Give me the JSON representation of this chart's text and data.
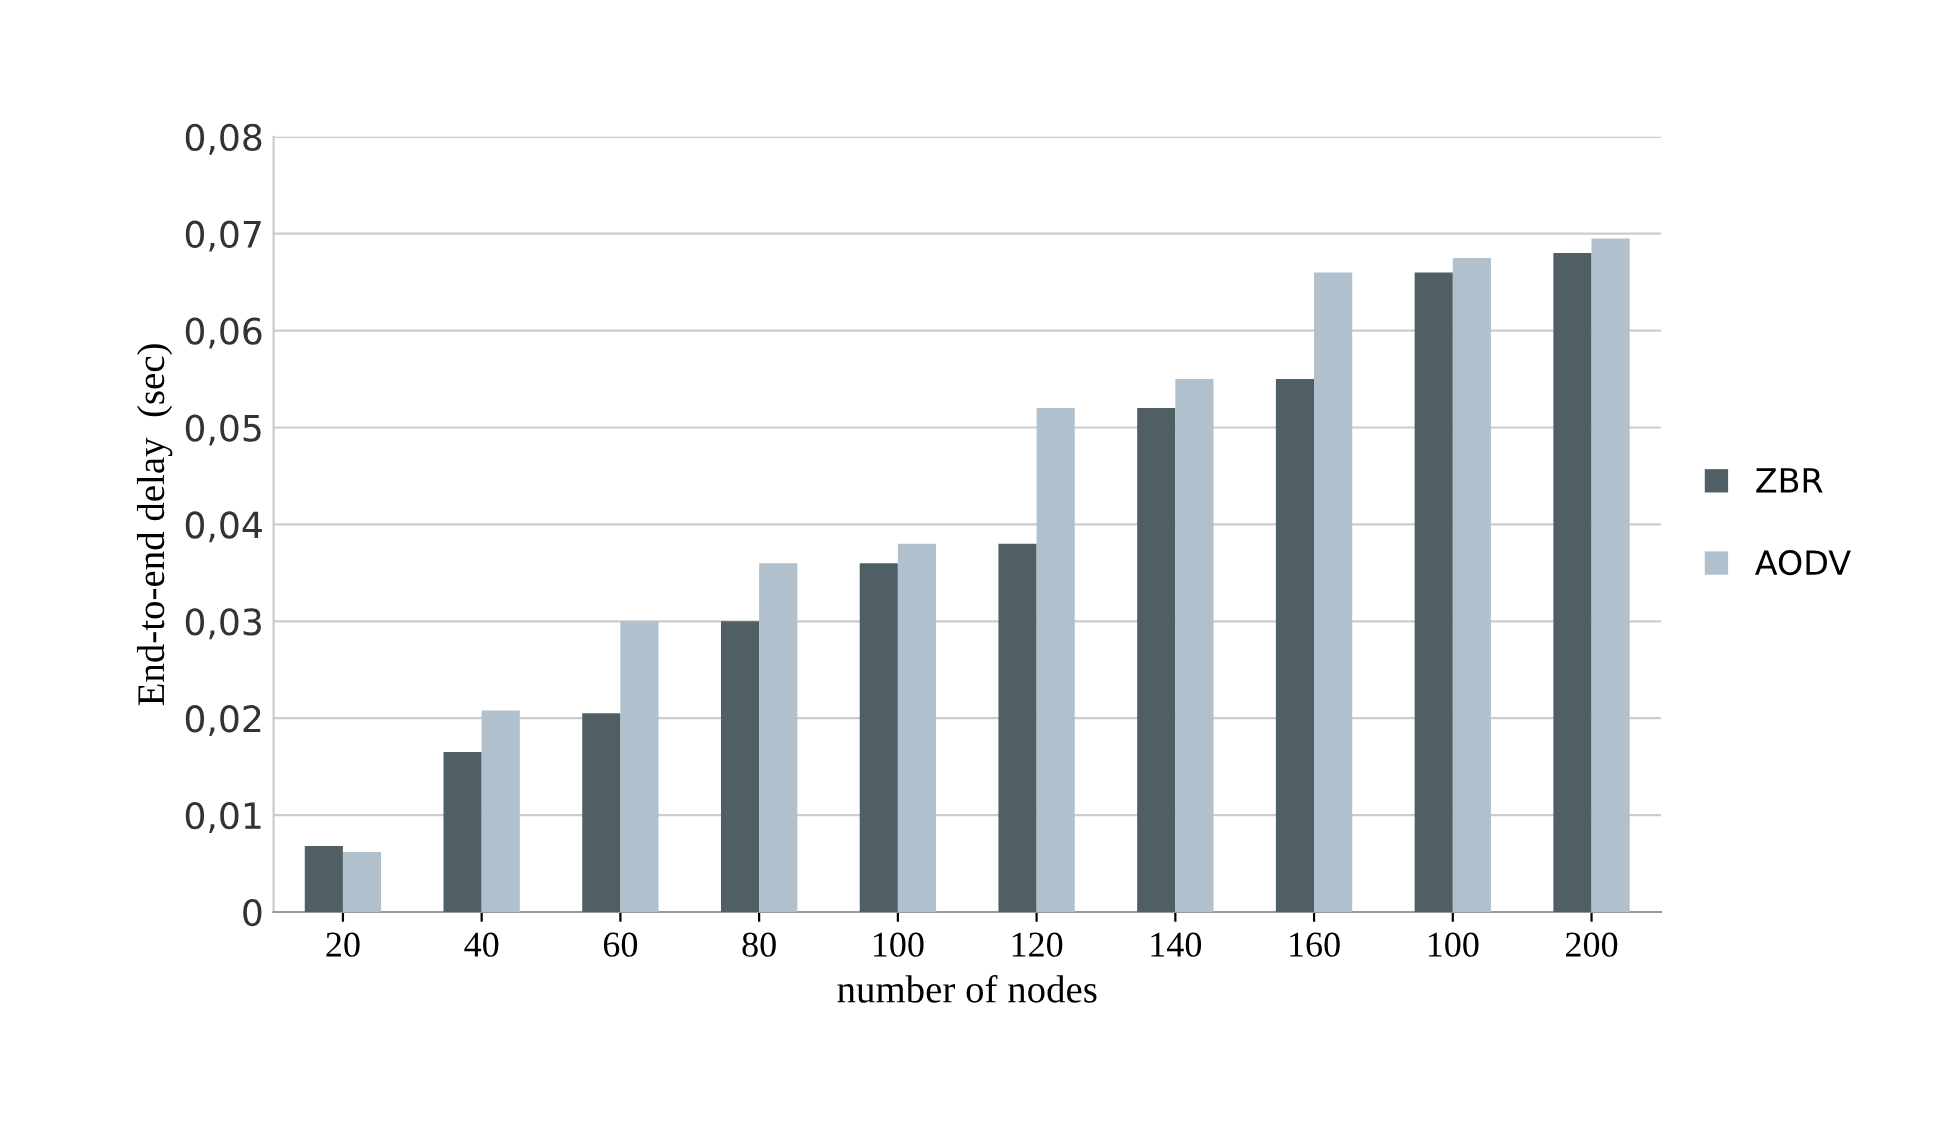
{
  "chart_data": {
    "type": "bar",
    "xlabel": "number of nodes",
    "ylabel": "End-to-end delay  (sec)",
    "categories": [
      "20",
      "40",
      "60",
      "80",
      "100",
      "120",
      "140",
      "160",
      "100",
      "200"
    ],
    "series": [
      {
        "name": "ZBR",
        "color": "#4f5f63",
        "values": [
          0.0068,
          0.0165,
          0.0205,
          0.03,
          0.036,
          0.038,
          0.052,
          0.055,
          0.066,
          0.068
        ]
      },
      {
        "name": "AODV",
        "color": "#b0c0cc",
        "values": [
          0.0062,
          0.0208,
          0.03,
          0.036,
          0.038,
          0.052,
          0.055,
          0.066,
          0.0675,
          0.0695
        ]
      }
    ],
    "ylim": [
      0,
      0.08
    ],
    "yticks": [
      0,
      {
        "value": 0.01,
        "label": "0,01"
      },
      {
        "value": 0.02,
        "label": "0,02"
      },
      {
        "value": 0.03,
        "label": "0,03"
      },
      {
        "value": 0.04,
        "label": "0,04"
      },
      {
        "value": 0.05,
        "label": "0,05"
      },
      {
        "value": 0.06,
        "label": "0,06"
      },
      {
        "value": 0.07,
        "label": "0,07"
      },
      {
        "value": 0.08,
        "label": "0,08"
      }
    ],
    "grid": "y",
    "legend": "right"
  }
}
